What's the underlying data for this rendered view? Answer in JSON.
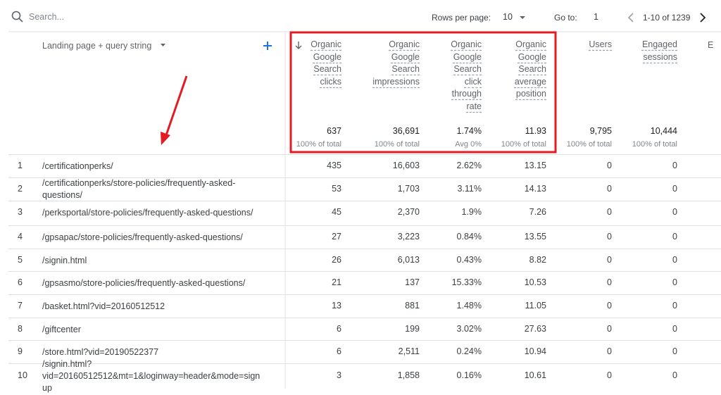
{
  "toolbar": {
    "search_placeholder": "Search...",
    "rows_per_page_label": "Rows per page:",
    "rows_per_page_value": "10",
    "goto_label": "Go to:",
    "goto_value": "1",
    "pagination": "1-10 of 1239"
  },
  "table": {
    "dimension_header": "Landing page + query string",
    "columns": [
      {
        "label": "Organic Google Search clicks",
        "total": "637",
        "total_note": "100% of total"
      },
      {
        "label": "Organic Google Search impressions",
        "total": "36,691",
        "total_note": "100% of total"
      },
      {
        "label": "Organic Google Search click through rate",
        "total": "1.74%",
        "total_note": "Avg 0%"
      },
      {
        "label": "Organic Google Search average position",
        "total": "11.93",
        "total_note": "100% of total"
      },
      {
        "label": "Users",
        "total": "9,795",
        "total_note": "100% of total"
      },
      {
        "label": "Engaged sessions",
        "total": "10,444",
        "total_note": "100% of total"
      }
    ],
    "partial_column_label": "E",
    "rows": [
      [
        "1",
        "/certificationperks/",
        "435",
        "16,603",
        "2.62%",
        "13.15",
        "0",
        "0"
      ],
      [
        "2",
        "/certificationperks/store-policies/frequently-asked-questions/",
        "53",
        "1,703",
        "3.11%",
        "14.13",
        "0",
        "0"
      ],
      [
        "3",
        "/perksportal/store-policies/frequently-asked-questions/",
        "45",
        "2,370",
        "1.9%",
        "7.26",
        "0",
        "0"
      ],
      [
        "4",
        "/gpsapac/store-policies/frequently-asked-questions/",
        "27",
        "3,223",
        "0.84%",
        "13.55",
        "0",
        "0"
      ],
      [
        "5",
        "/signin.html",
        "26",
        "6,013",
        "0.43%",
        "8.82",
        "0",
        "0"
      ],
      [
        "6",
        "/gpsasmo/store-policies/frequently-asked-questions/",
        "21",
        "137",
        "15.33%",
        "10.53",
        "0",
        "0"
      ],
      [
        "7",
        "/basket.html?vid=20160512512",
        "13",
        "881",
        "1.48%",
        "11.05",
        "0",
        "0"
      ],
      [
        "8",
        "/giftcenter",
        "6",
        "199",
        "3.02%",
        "27.63",
        "0",
        "0"
      ],
      [
        "9",
        "/store.html?vid=20190522377",
        "6",
        "2,511",
        "0.24%",
        "10.94",
        "0",
        "0"
      ],
      [
        "10",
        "/signin.html?vid=20160512512&mt=1&loginway=header&mode=signup",
        "3",
        "1,858",
        "0.16%",
        "10.61",
        "0",
        "0"
      ]
    ]
  }
}
